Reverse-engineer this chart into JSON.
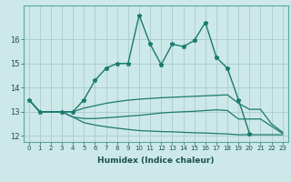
{
  "xlabel": "Humidex (Indice chaleur)",
  "bg_color": "#cce8e8",
  "grid_color": "#aacccc",
  "line_color": "#1a7a6e",
  "ylim": [
    11.75,
    17.4
  ],
  "yticks": [
    12,
    13,
    14,
    15,
    16
  ],
  "xticks": [
    0,
    1,
    2,
    3,
    4,
    5,
    6,
    7,
    8,
    9,
    10,
    11,
    12,
    13,
    14,
    15,
    16,
    17,
    18,
    19,
    20,
    21,
    22,
    23
  ],
  "main_line_x": [
    0,
    1,
    3,
    4,
    5,
    6,
    7,
    8,
    9,
    10,
    11,
    12,
    13,
    14,
    15,
    16,
    17,
    18,
    19,
    20
  ],
  "main_line_y": [
    13.5,
    13.0,
    13.0,
    13.0,
    13.5,
    14.3,
    14.8,
    15.0,
    15.0,
    17.0,
    15.8,
    14.95,
    15.8,
    15.7,
    15.95,
    16.7,
    15.25,
    14.8,
    13.5,
    12.1
  ],
  "line_top_x": [
    0,
    1,
    3,
    4,
    5,
    6,
    7,
    8,
    9,
    10,
    11,
    12,
    13,
    14,
    15,
    16,
    17,
    18,
    19,
    20,
    21,
    22,
    23
  ],
  "line_top_y": [
    13.5,
    13.0,
    13.0,
    13.0,
    13.15,
    13.25,
    13.35,
    13.42,
    13.48,
    13.52,
    13.55,
    13.58,
    13.6,
    13.62,
    13.64,
    13.66,
    13.68,
    13.7,
    13.35,
    13.1,
    13.1,
    12.5,
    12.15
  ],
  "line_mid_x": [
    0,
    1,
    3,
    4,
    5,
    6,
    7,
    8,
    9,
    10,
    11,
    12,
    13,
    14,
    15,
    16,
    17,
    18,
    19,
    20,
    21,
    22,
    23
  ],
  "line_mid_y": [
    13.5,
    13.0,
    13.0,
    12.78,
    12.72,
    12.72,
    12.75,
    12.78,
    12.82,
    12.85,
    12.9,
    12.95,
    12.98,
    13.0,
    13.02,
    13.05,
    13.08,
    13.05,
    12.7,
    12.7,
    12.7,
    12.4,
    12.1
  ],
  "line_bot_x": [
    0,
    1,
    3,
    4,
    5,
    6,
    7,
    8,
    9,
    10,
    11,
    12,
    13,
    14,
    15,
    16,
    17,
    18,
    19,
    20,
    21,
    22,
    23
  ],
  "line_bot_y": [
    13.5,
    13.0,
    13.0,
    12.78,
    12.55,
    12.45,
    12.38,
    12.32,
    12.27,
    12.22,
    12.2,
    12.18,
    12.17,
    12.15,
    12.13,
    12.12,
    12.1,
    12.08,
    12.05,
    12.05,
    12.05,
    12.05,
    12.05
  ]
}
